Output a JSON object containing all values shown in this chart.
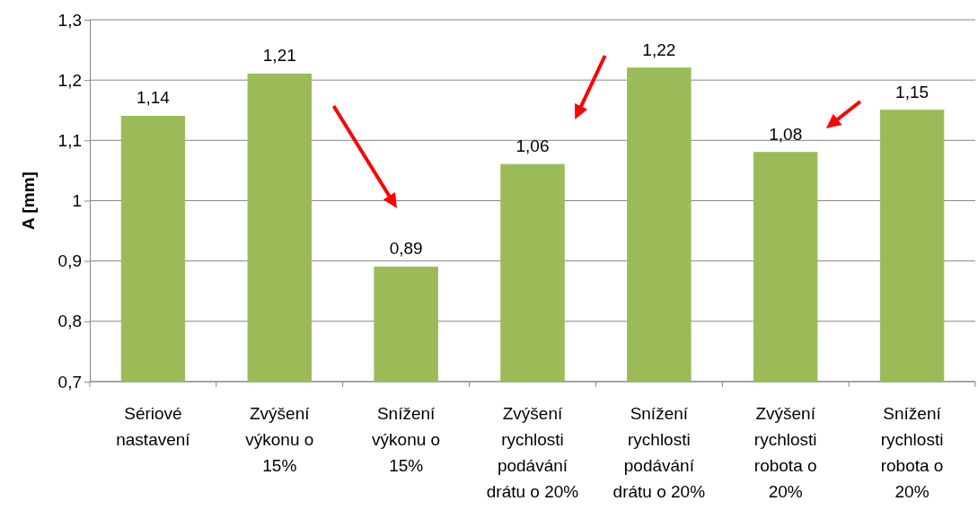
{
  "chart_data": {
    "type": "bar",
    "ylabel": "A [mm]",
    "categories": [
      "Sériové nastavení",
      "Zvýšení výkonu o 15%",
      "Snížení výkonu o 15%",
      "Zvýšení rychlosti podávání drátu o 20%",
      "Snížení rychlosti podávání drátu o 20%",
      "Zvýšení rychlosti robota o 20%",
      "Snížení rychlosti robota o 20%"
    ],
    "values": [
      1.14,
      1.21,
      0.89,
      1.06,
      1.22,
      1.08,
      1.15
    ],
    "value_labels": [
      "1,14",
      "1,21",
      "0,89",
      "1,06",
      "1,22",
      "1,08",
      "1,15"
    ],
    "color": "#9bbb59",
    "ylim": [
      0.7,
      1.3
    ],
    "yticks": [
      {
        "value": 0.7,
        "label": "0,7"
      },
      {
        "value": 0.8,
        "label": "0,8"
      },
      {
        "value": 0.9,
        "label": "0,9"
      },
      {
        "value": 1,
        "label": "1"
      },
      {
        "value": 1.1,
        "label": "1,1"
      },
      {
        "value": 1.2,
        "label": "1,2"
      },
      {
        "value": 1.3,
        "label": "1,3"
      }
    ],
    "grid": "y"
  }
}
